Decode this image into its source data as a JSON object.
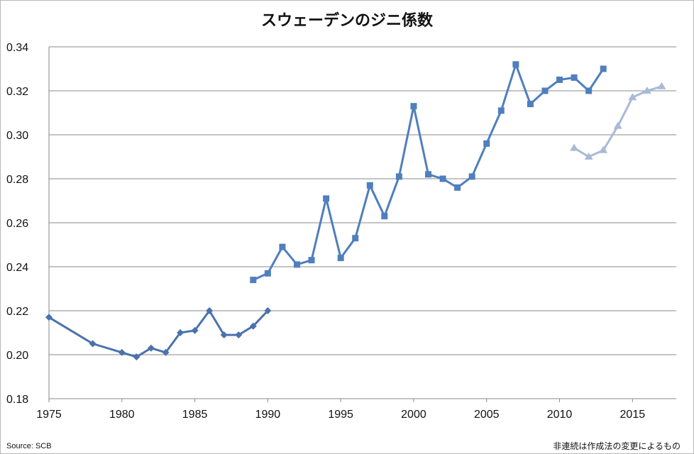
{
  "chart_data": {
    "type": "line",
    "title": "スウェーデンのジニ係数",
    "xlabel": "",
    "ylabel": "",
    "xlim": [
      1975,
      2018
    ],
    "ylim": [
      0.18,
      0.34
    ],
    "x_ticks": [
      "1975",
      "1980",
      "1985",
      "1990",
      "1995",
      "2000",
      "2005",
      "2010",
      "2015"
    ],
    "y_ticks": [
      "0.18",
      "0.20",
      "0.22",
      "0.24",
      "0.26",
      "0.28",
      "0.30",
      "0.32",
      "0.34"
    ],
    "grid": true,
    "legend": "none",
    "series": [
      {
        "color": "#4a72ad",
        "marker": "diamond",
        "x": [
          1975,
          1978,
          1980,
          1981,
          1982,
          1983,
          1984,
          1985,
          1986,
          1987,
          1988,
          1989,
          1990
        ],
        "y": [
          0.217,
          0.205,
          0.201,
          0.199,
          0.203,
          0.201,
          0.21,
          0.211,
          0.22,
          0.209,
          0.209,
          0.213,
          0.22
        ]
      },
      {
        "color": "#4f7fbd",
        "marker": "square",
        "x": [
          1989,
          1990,
          1991,
          1992,
          1993,
          1994,
          1995,
          1996,
          1997,
          1998,
          1999,
          2000,
          2001,
          2002,
          2003,
          2004,
          2005,
          2006,
          2007,
          2008,
          2009,
          2010,
          2011,
          2012,
          2013
        ],
        "y": [
          0.234,
          0.237,
          0.249,
          0.241,
          0.243,
          0.271,
          0.244,
          0.253,
          0.277,
          0.263,
          0.281,
          0.313,
          0.282,
          0.28,
          0.276,
          0.281,
          0.296,
          0.311,
          0.332,
          0.314,
          0.32,
          0.325,
          0.326,
          0.32,
          0.33
        ]
      },
      {
        "color": "#a9b9d6",
        "marker": "triangle",
        "x": [
          2011,
          2012,
          2013,
          2014,
          2015,
          2016,
          2017
        ],
        "y": [
          0.294,
          0.29,
          0.293,
          0.304,
          0.317,
          0.32,
          0.322
        ]
      }
    ]
  },
  "notes": {
    "source": "Source: SCB",
    "footnote": "非連続は作成法の変更によるもの"
  }
}
